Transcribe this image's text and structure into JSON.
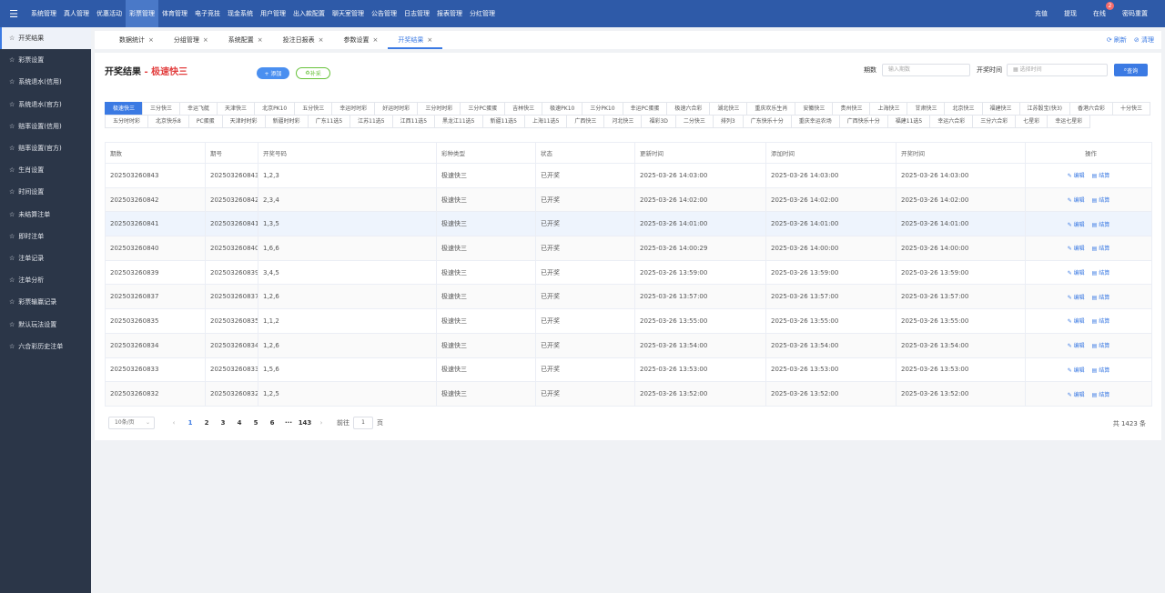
{
  "topbar": {
    "menu_icon": "hamburger-icon",
    "nav": [
      "系统管理",
      "真人管理",
      "优惠活动",
      "彩票管理",
      "体育管理",
      "电子竞技",
      "现金系统",
      "用户管理",
      "出入款配置",
      "聊天室管理",
      "公告管理",
      "日志管理",
      "报表管理",
      "分红管理"
    ],
    "active_nav": 3,
    "right": {
      "recharge": "充值",
      "withdraw": "提现",
      "online": "在线",
      "online_badge": "2",
      "change_password": "密码重置"
    }
  },
  "sidebar": {
    "items": [
      "开奖结果",
      "彩票设置",
      "系统退水(信用)",
      "系统退水(官方)",
      "赔率设置(信用)",
      "赔率设置(官方)",
      "生肖设置",
      "时间设置",
      "未结算注单",
      "即时注单",
      "注单记录",
      "注单分析",
      "彩票输赢记录",
      "默认玩法设置",
      "六合彩历史注单"
    ],
    "active": 0
  },
  "tabs": {
    "items": [
      "数据统计",
      "分组管理",
      "系统配置",
      "投注日报表",
      "参数设置",
      "开奖结果"
    ],
    "active": 5,
    "refresh": "刷新",
    "clear": "清理"
  },
  "page": {
    "title": "开奖结果",
    "separator": " - ",
    "subtitle": "极速快三",
    "add_button": "+ 添加",
    "fill_button": "补采",
    "filter": {
      "issue_label": "期数",
      "issue_placeholder": "输入期数",
      "time_label": "开奖时间",
      "time_placeholder": "选择时间",
      "query_button": "查询"
    }
  },
  "lotteries": {
    "items": [
      "极速快三",
      "三分快三",
      "幸运飞艇",
      "天津快三",
      "北京PK10",
      "五分快三",
      "幸运时时彩",
      "好运时时彩",
      "三分时时彩",
      "三分PC蛋蛋",
      "吉林快三",
      "极速PK10",
      "三分PK10",
      "幸运PC蛋蛋",
      "极速六合彩",
      "湖北快三",
      "重庆欢乐生肖",
      "安徽快三",
      "贵州快三",
      "上海快三",
      "甘肃快三",
      "北京快三",
      "福建快三",
      "江苏骰宝(快3)",
      "香港六合彩",
      "十分快三",
      "五分时时彩",
      "北京快乐8",
      "PC蛋蛋",
      "天津时时彩",
      "新疆时时彩",
      "广东11选5",
      "江苏11选5",
      "江西11选5",
      "黑龙江11选5",
      "新疆11选5",
      "上海11选5",
      "广西快三",
      "河北快三",
      "福彩3D",
      "二分快三",
      "排列3",
      "广东快乐十分",
      "重庆幸运农场",
      "广西快乐十分",
      "福建11选5",
      "幸运六合彩",
      "三分六合彩",
      "七星彩",
      "幸运七星彩"
    ],
    "active": 0
  },
  "table": {
    "headers": [
      "期数",
      "期号",
      "开奖号码",
      "彩种类型",
      "状态",
      "更新时间",
      "添加时间",
      "开奖时间",
      "操作"
    ],
    "edit_label": "编辑",
    "settle_label": "结算",
    "rows": [
      [
        "202503260843",
        "202503260843",
        "1,2,3",
        "极速快三",
        "已开奖",
        "2025-03-26 14:03:00",
        "2025-03-26 14:03:00",
        "2025-03-26 14:03:00"
      ],
      [
        "202503260842",
        "202503260842",
        "2,3,4",
        "极速快三",
        "已开奖",
        "2025-03-26 14:02:00",
        "2025-03-26 14:02:00",
        "2025-03-26 14:02:00"
      ],
      [
        "202503260841",
        "202503260841",
        "1,3,5",
        "极速快三",
        "已开奖",
        "2025-03-26 14:01:00",
        "2025-03-26 14:01:00",
        "2025-03-26 14:01:00"
      ],
      [
        "202503260840",
        "202503260840",
        "1,6,6",
        "极速快三",
        "已开奖",
        "2025-03-26 14:00:29",
        "2025-03-26 14:00:00",
        "2025-03-26 14:00:00"
      ],
      [
        "202503260839",
        "202503260839",
        "3,4,5",
        "极速快三",
        "已开奖",
        "2025-03-26 13:59:00",
        "2025-03-26 13:59:00",
        "2025-03-26 13:59:00"
      ],
      [
        "202503260837",
        "202503260837",
        "1,2,6",
        "极速快三",
        "已开奖",
        "2025-03-26 13:57:00",
        "2025-03-26 13:57:00",
        "2025-03-26 13:57:00"
      ],
      [
        "202503260835",
        "202503260835",
        "1,1,2",
        "极速快三",
        "已开奖",
        "2025-03-26 13:55:00",
        "2025-03-26 13:55:00",
        "2025-03-26 13:55:00"
      ],
      [
        "202503260834",
        "202503260834",
        "1,2,6",
        "极速快三",
        "已开奖",
        "2025-03-26 13:54:00",
        "2025-03-26 13:54:00",
        "2025-03-26 13:54:00"
      ],
      [
        "202503260833",
        "202503260833",
        "1,5,6",
        "极速快三",
        "已开奖",
        "2025-03-26 13:53:00",
        "2025-03-26 13:53:00",
        "2025-03-26 13:53:00"
      ],
      [
        "202503260832",
        "202503260832",
        "1,2,5",
        "极速快三",
        "已开奖",
        "2025-03-26 13:52:00",
        "2025-03-26 13:52:00",
        "2025-03-26 13:52:00"
      ]
    ],
    "hover_row": 2
  },
  "pagination": {
    "page_size": "10条/页",
    "pages": [
      "1",
      "2",
      "3",
      "4",
      "5",
      "6",
      "···",
      "143"
    ],
    "current": 0,
    "goto_label": "前往",
    "goto_value": "1",
    "goto_suffix": "页",
    "total": "共 1423 条"
  }
}
